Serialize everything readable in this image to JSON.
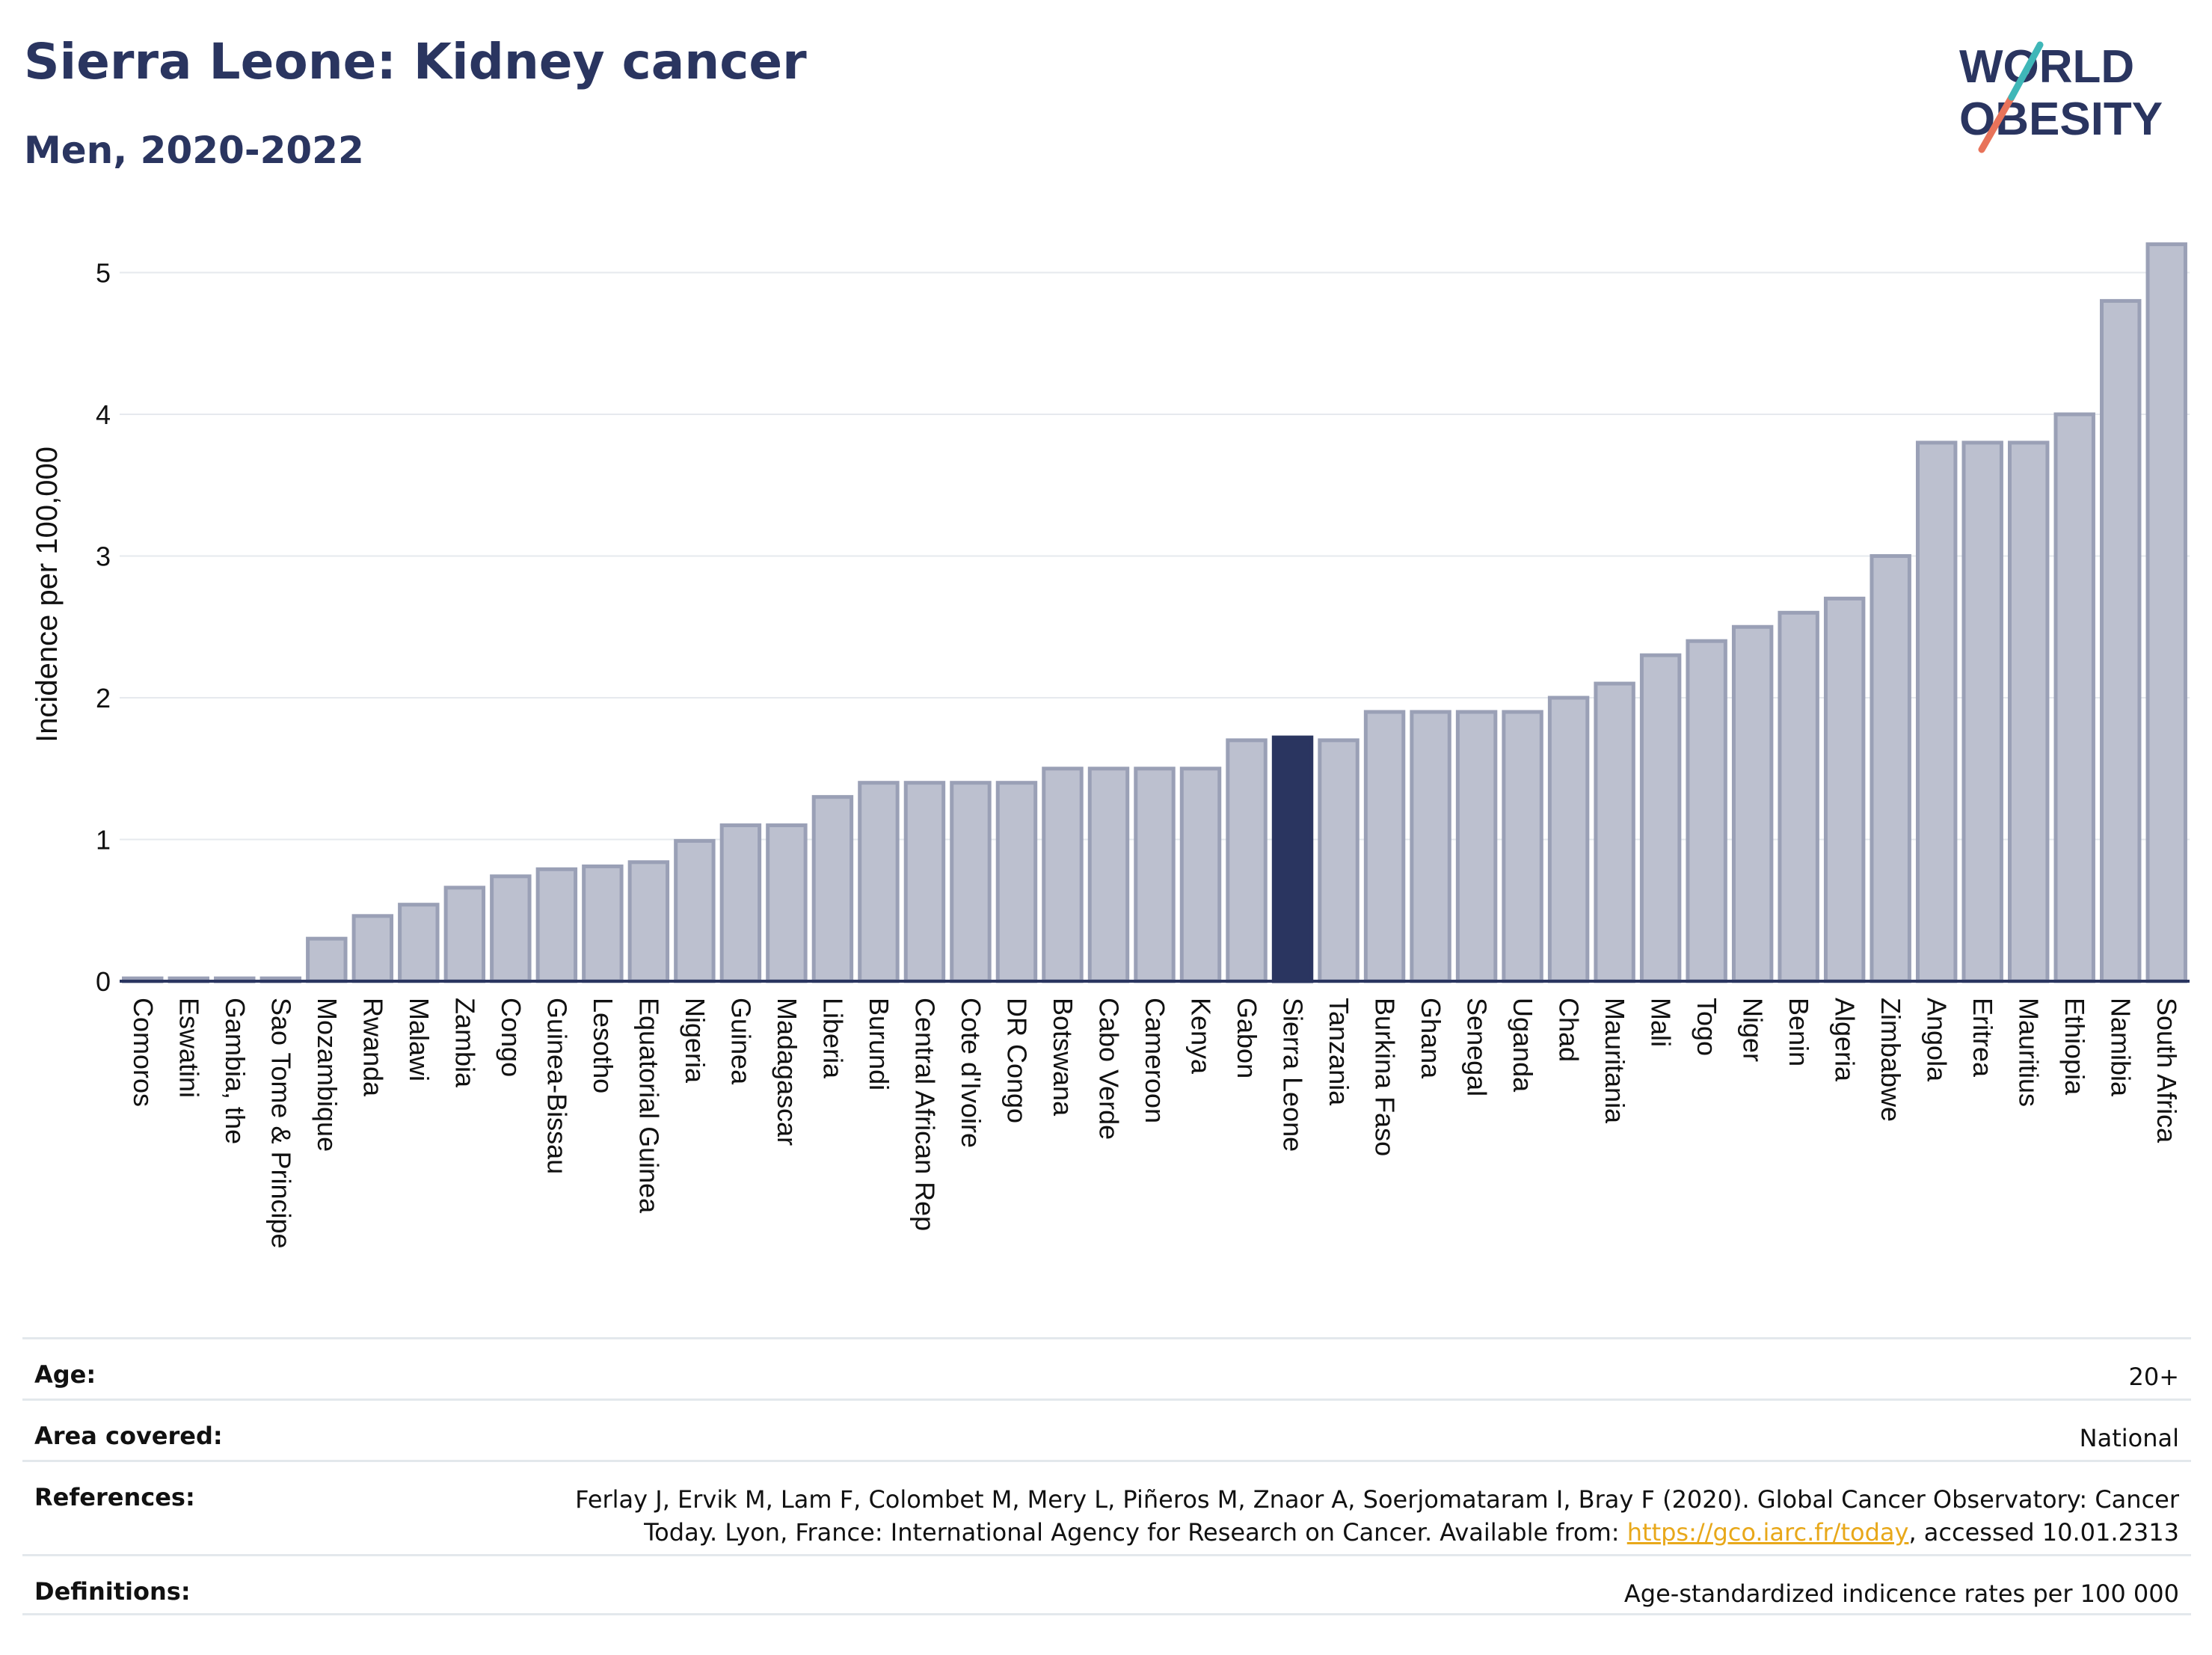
{
  "title": "Sierra Leone: Kidney cancer",
  "subtitle": "Men, 2020-2022",
  "logo": {
    "line1": "WORLD",
    "line2": "OBESITY",
    "brand_color": "#2a3560",
    "accent_colors": [
      "#e8735a",
      "#3fb7b8"
    ]
  },
  "chart_data": {
    "type": "bar",
    "ylabel": "Incidence per 100,000",
    "xlabel": "",
    "ylim": [
      0,
      5.3
    ],
    "yticks": [
      0,
      1,
      2,
      3,
      4,
      5
    ],
    "grid": true,
    "highlight": "Sierra Leone",
    "colors": {
      "bar": "#bcc0cf",
      "bar_edge": "#9aa0b6",
      "highlight": "#2a3560"
    },
    "categories": [
      "Comoros",
      "Eswatini",
      "Gambia, the",
      "Sao Tome & Principe",
      "Mozambique",
      "Rwanda",
      "Malawi",
      "Zambia",
      "Congo",
      "Guinea-Bissau",
      "Lesotho",
      "Equatorial Guinea",
      "Nigeria",
      "Guinea",
      "Madagascar",
      "Liberia",
      "Burundi",
      "Central African Rep",
      "Cote d'Ivoire",
      "DR Congo",
      "Botswana",
      "Cabo Verde",
      "Cameroon",
      "Kenya",
      "Gabon",
      "Sierra Leone",
      "Tanzania",
      "Burkina Faso",
      "Ghana",
      "Senegal",
      "Uganda",
      "Chad",
      "Mauritania",
      "Mali",
      "Togo",
      "Niger",
      "Benin",
      "Algeria",
      "Zimbabwe",
      "Angola",
      "Eritrea",
      "Mauritius",
      "Ethiopia",
      "Namibia",
      "South Africa"
    ],
    "values": [
      0.02,
      0.02,
      0.02,
      0.02,
      0.3,
      0.46,
      0.54,
      0.66,
      0.74,
      0.79,
      0.81,
      0.84,
      0.99,
      1.1,
      1.1,
      1.3,
      1.4,
      1.4,
      1.4,
      1.4,
      1.5,
      1.5,
      1.5,
      1.5,
      1.7,
      1.72,
      1.7,
      1.9,
      1.9,
      1.9,
      1.9,
      2.0,
      2.1,
      2.3,
      2.4,
      2.5,
      2.6,
      2.7,
      3.0,
      3.8,
      3.8,
      3.8,
      4.0,
      4.8,
      5.2
    ]
  },
  "info": {
    "age_label": "Age:",
    "age_value": "20+",
    "area_label": "Area covered:",
    "area_value": "National",
    "references_label": "References:",
    "references_line1": "Ferlay J, Ervik M, Lam F, Colombet M, Mery L, Piñeros M, Znaor A, Soerjomataram I, Bray F (2020). Global Cancer Observatory: Cancer",
    "references_line2_pre": "Today. Lyon, France: International Agency for Research on Cancer. Available from: ",
    "references_link": "https://gco.iarc.fr/today",
    "references_line2_post": ", accessed 10.01.2313",
    "definitions_label": "Definitions:",
    "definitions_value": "Age-standardized indicence rates per 100 000"
  }
}
